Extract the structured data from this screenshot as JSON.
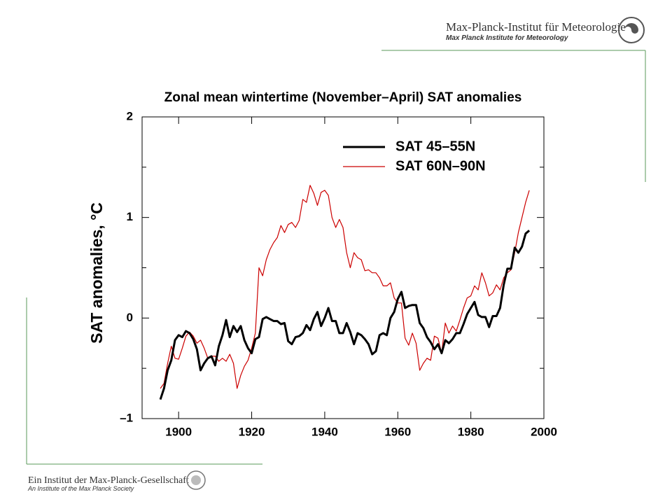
{
  "header": {
    "title": "Max-Planck-Institut für Meteorologie",
    "subtitle": "Max Planck Institute for Meteorology"
  },
  "footer": {
    "title": "Ein Institut der Max-Planck-Gesellschaft",
    "subtitle": "An Institute of the Max Planck Society"
  },
  "chart_data": {
    "type": "line",
    "title": "Zonal mean wintertime (November–April) SAT anomalies",
    "y_label": "SAT anomalies, °C",
    "x": [
      1895,
      1896,
      1897,
      1898,
      1899,
      1900,
      1901,
      1902,
      1903,
      1904,
      1905,
      1906,
      1907,
      1908,
      1909,
      1910,
      1911,
      1912,
      1913,
      1914,
      1915,
      1916,
      1917,
      1918,
      1919,
      1920,
      1921,
      1922,
      1923,
      1924,
      1925,
      1926,
      1927,
      1928,
      1929,
      1930,
      1931,
      1932,
      1933,
      1934,
      1935,
      1936,
      1937,
      1938,
      1939,
      1940,
      1941,
      1942,
      1943,
      1944,
      1945,
      1946,
      1947,
      1948,
      1949,
      1950,
      1951,
      1952,
      1953,
      1954,
      1955,
      1956,
      1957,
      1958,
      1959,
      1960,
      1961,
      1962,
      1963,
      1964,
      1965,
      1966,
      1967,
      1968,
      1969,
      1970,
      1971,
      1972,
      1973,
      1974,
      1975,
      1976,
      1977,
      1978,
      1979,
      1980,
      1981,
      1982,
      1983,
      1984,
      1985,
      1986,
      1987,
      1988,
      1989,
      1990,
      1991,
      1992,
      1993,
      1994,
      1995,
      1996
    ],
    "series": [
      {
        "name": "SAT 45–55N",
        "color": "#000000",
        "width": 3,
        "values": [
          -0.81,
          -0.7,
          -0.52,
          -0.42,
          -0.22,
          -0.17,
          -0.19,
          -0.13,
          -0.15,
          -0.21,
          -0.31,
          -0.52,
          -0.45,
          -0.4,
          -0.38,
          -0.47,
          -0.28,
          -0.17,
          -0.02,
          -0.19,
          -0.08,
          -0.14,
          -0.08,
          -0.22,
          -0.3,
          -0.35,
          -0.21,
          -0.19,
          -0.01,
          0.01,
          -0.01,
          -0.03,
          -0.03,
          -0.06,
          -0.05,
          -0.23,
          -0.26,
          -0.19,
          -0.18,
          -0.15,
          -0.07,
          -0.12,
          -0.01,
          0.06,
          -0.08,
          0,
          0.1,
          -0.03,
          -0.03,
          -0.15,
          -0.15,
          -0.05,
          -0.14,
          -0.26,
          -0.15,
          -0.17,
          -0.21,
          -0.26,
          -0.36,
          -0.33,
          -0.17,
          -0.15,
          -0.17,
          0,
          0.06,
          0.19,
          0.26,
          0.1,
          0.12,
          0.13,
          0.13,
          -0.05,
          -0.1,
          -0.19,
          -0.24,
          -0.31,
          -0.26,
          -0.35,
          -0.22,
          -0.25,
          -0.21,
          -0.15,
          -0.15,
          -0.06,
          0.04,
          0.1,
          0.16,
          0.03,
          0.01,
          0.01,
          -0.09,
          0.02,
          0.02,
          0.1,
          0.33,
          0.49,
          0.49,
          0.7,
          0.65,
          0.71,
          0.84,
          0.87
        ]
      },
      {
        "name": "SAT 60N–90N",
        "color": "#cc0000",
        "width": 1.2,
        "values": [
          -0.7,
          -0.65,
          -0.45,
          -0.28,
          -0.4,
          -0.41,
          -0.3,
          -0.18,
          -0.14,
          -0.18,
          -0.25,
          -0.22,
          -0.3,
          -0.4,
          -0.38,
          -0.38,
          -0.43,
          -0.4,
          -0.43,
          -0.36,
          -0.45,
          -0.7,
          -0.57,
          -0.48,
          -0.42,
          -0.3,
          -0.15,
          0.5,
          0.42,
          0.58,
          0.68,
          0.75,
          0.8,
          0.92,
          0.85,
          0.93,
          0.95,
          0.9,
          0.97,
          1.18,
          1.15,
          1.32,
          1.24,
          1.12,
          1.25,
          1.27,
          1.22,
          1.0,
          0.9,
          0.98,
          0.9,
          0.65,
          0.5,
          0.65,
          0.6,
          0.58,
          0.47,
          0.48,
          0.45,
          0.45,
          0.4,
          0.32,
          0.32,
          0.35,
          0.2,
          0.15,
          0.15,
          -0.2,
          -0.27,
          -0.15,
          -0.25,
          -0.52,
          -0.45,
          -0.4,
          -0.42,
          -0.18,
          -0.2,
          -0.35,
          -0.05,
          -0.15,
          -0.08,
          -0.13,
          -0.02,
          0.1,
          0.2,
          0.22,
          0.32,
          0.28,
          0.45,
          0.35,
          0.22,
          0.25,
          0.33,
          0.28,
          0.4,
          0.45,
          0.48,
          0.65,
          0.85,
          1.0,
          1.15,
          1.27
        ]
      }
    ],
    "xlim": [
      1890,
      2000
    ],
    "xticks": [
      1900,
      1920,
      1940,
      1960,
      1980,
      2000
    ],
    "ylim": [
      -1,
      2
    ],
    "yticks": [
      {
        "value": -1,
        "label": "–1"
      },
      0,
      1,
      2
    ],
    "yminor_ticks": [
      -0.5,
      0.5,
      1.5
    ],
    "grid": false
  }
}
